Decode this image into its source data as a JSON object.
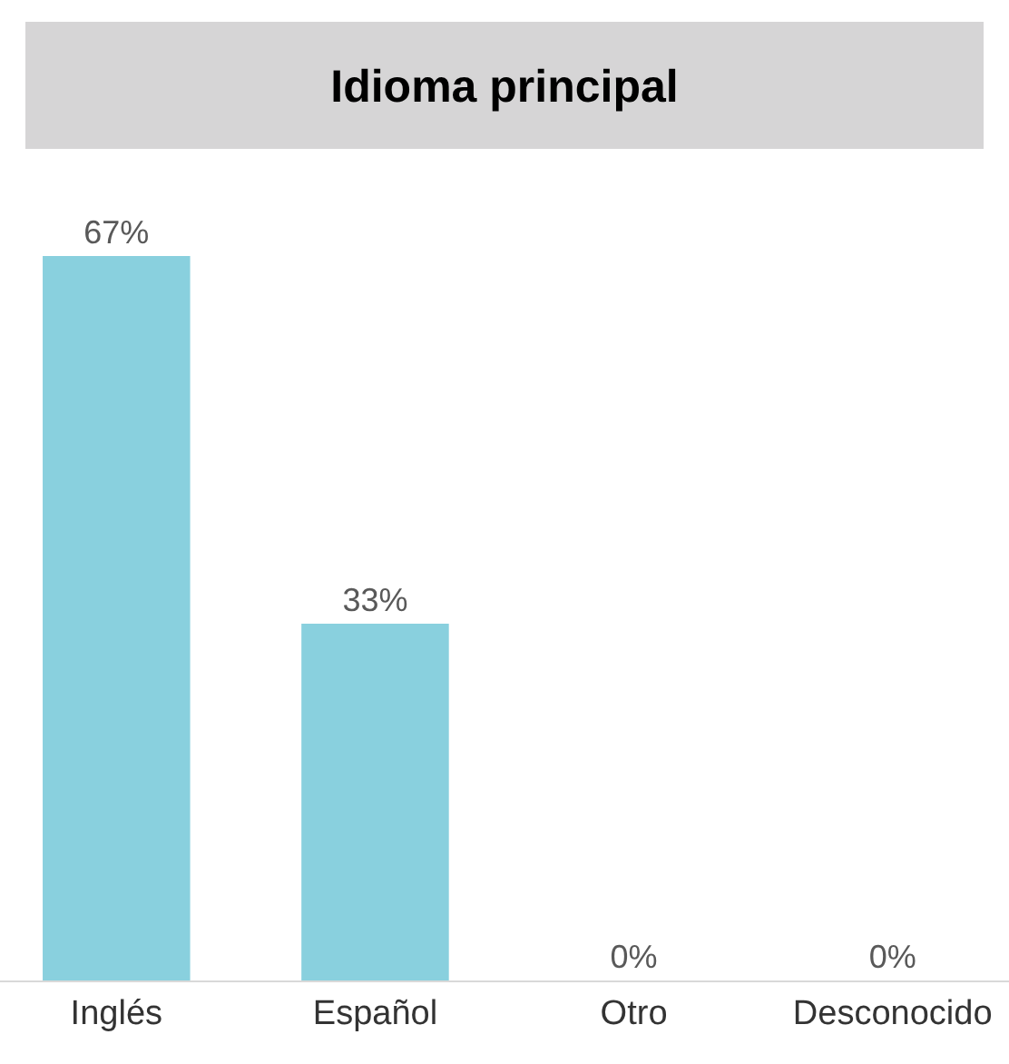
{
  "chart_data": {
    "type": "bar",
    "title": "Idioma principal",
    "categories": [
      "Inglés",
      "Español",
      "Otro",
      "Desconocido"
    ],
    "values": [
      67,
      33,
      0,
      0
    ],
    "value_labels": [
      "67%",
      "33%",
      "0%",
      "0%"
    ],
    "color": "#89d0de"
  }
}
